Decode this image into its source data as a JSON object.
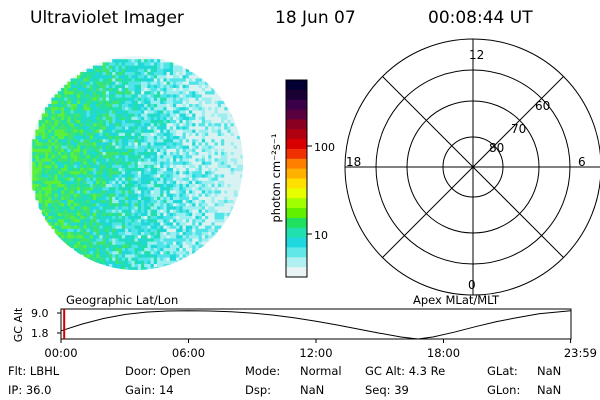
{
  "header": {
    "instrument": "Ultraviolet Imager",
    "date": "18 Jun 07",
    "time": "00:08:44 UT"
  },
  "colorbar": {
    "label": "photon cm⁻²s⁻¹",
    "ticks": [
      "100",
      "10"
    ],
    "colors": [
      "#000033",
      "#1a0033",
      "#3a004a",
      "#5a0040",
      "#8a0020",
      "#b00010",
      "#d80000",
      "#f03000",
      "#ff8000",
      "#ffb000",
      "#ffe000",
      "#e8ff00",
      "#a0ff00",
      "#60f000",
      "#20e060",
      "#20e0b0",
      "#20d8e0",
      "#60e8e8",
      "#b0f0f0",
      "#e8f4f4"
    ]
  },
  "polar": {
    "mlt_labels": [
      "12",
      "18",
      "6",
      "0"
    ],
    "lat_labels": [
      "60",
      "70",
      "80"
    ]
  },
  "projection_labels": {
    "geographic": "Geographic Lat/Lon",
    "apex": "Apex MLat/MLT"
  },
  "altitude_plot": {
    "ylabel": "GC Alt",
    "yticks": [
      "9.0",
      "1.8"
    ],
    "xticks": [
      "00:00",
      "06:00",
      "12:00",
      "18:00",
      "23:59"
    ]
  },
  "chart_data": {
    "type": "line",
    "xlabel": "",
    "ylabel": "GC Alt",
    "xlim": [
      0,
      24
    ],
    "ylim": [
      1.0,
      9.8
    ],
    "x": [
      0,
      1,
      2,
      3,
      4,
      5,
      6,
      7,
      8,
      9,
      10,
      11,
      12,
      13,
      14,
      15,
      16,
      16.8,
      17.5,
      18.5,
      19.5,
      20.5,
      21.5,
      22.5,
      23.98
    ],
    "values": [
      3.4,
      5.4,
      7.0,
      8.2,
      8.9,
      9.2,
      9.3,
      9.2,
      9.0,
      8.6,
      8.0,
      7.2,
      6.2,
      5.1,
      3.9,
      2.7,
      1.6,
      1.0,
      1.6,
      3.0,
      4.6,
      6.1,
      7.3,
      8.4,
      9.3
    ],
    "current_time": 0.15
  },
  "status": {
    "flt": "Flt: LBHL",
    "door": "Door: Open",
    "mode_label": "Mode:",
    "mode_value": "Normal",
    "gc_alt": "GC Alt: 4.3 Re",
    "glat_label": "GLat:",
    "glat_value": "NaN",
    "ip": "IP: 36.0",
    "gain": "Gain: 14",
    "dsp_label": "Dsp:",
    "dsp_value": "NaN",
    "seq": "Seq: 39",
    "glon_label": "GLon:",
    "glon_value": "NaN"
  }
}
